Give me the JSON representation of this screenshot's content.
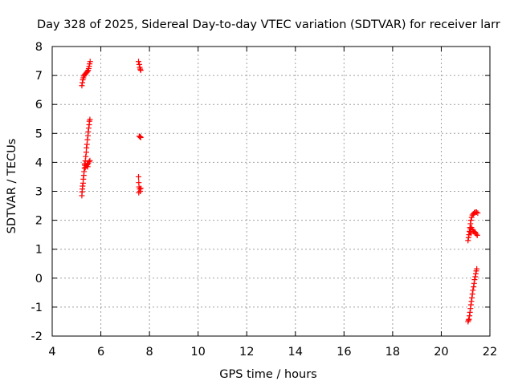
{
  "chart_data": {
    "type": "scatter",
    "title": "Day 328 of 2025, Sidereal Day-to-day VTEC variation (SDTVAR) for receiver larr",
    "xlabel": "GPS time / hours",
    "ylabel": "SDTVAR / TECUs",
    "xlim": [
      4,
      22
    ],
    "ylim": [
      -2,
      8
    ],
    "xticks": [
      4,
      6,
      8,
      10,
      12,
      14,
      16,
      18,
      20,
      22
    ],
    "yticks": [
      -2,
      -1,
      0,
      1,
      2,
      3,
      4,
      5,
      6,
      7,
      8
    ],
    "grid": true,
    "marker": "+",
    "colors": {
      "series": "#ff0000",
      "grid": "#a0a0a0",
      "axis": "#000000"
    },
    "series": [
      {
        "name": "SDTVAR",
        "points": [
          [
            5.22,
            6.65
          ],
          [
            5.24,
            6.75
          ],
          [
            5.26,
            6.85
          ],
          [
            5.28,
            6.92
          ],
          [
            5.3,
            6.98
          ],
          [
            5.33,
            7.02
          ],
          [
            5.36,
            7.05
          ],
          [
            5.39,
            7.08
          ],
          [
            5.42,
            7.11
          ],
          [
            5.45,
            7.14
          ],
          [
            5.48,
            7.18
          ],
          [
            5.5,
            7.24
          ],
          [
            5.52,
            7.32
          ],
          [
            5.54,
            7.4
          ],
          [
            5.56,
            7.48
          ],
          [
            5.22,
            2.85
          ],
          [
            5.23,
            2.98
          ],
          [
            5.24,
            3.08
          ],
          [
            5.25,
            3.18
          ],
          [
            5.27,
            3.28
          ],
          [
            5.28,
            3.42
          ],
          [
            5.3,
            3.55
          ],
          [
            5.31,
            3.68
          ],
          [
            5.33,
            3.8
          ],
          [
            5.34,
            3.9
          ],
          [
            5.36,
            4.05
          ],
          [
            5.38,
            4.2
          ],
          [
            5.4,
            4.35
          ],
          [
            5.41,
            4.5
          ],
          [
            5.43,
            4.62
          ],
          [
            5.45,
            4.78
          ],
          [
            5.47,
            4.92
          ],
          [
            5.48,
            5.05
          ],
          [
            5.5,
            5.18
          ],
          [
            5.52,
            5.3
          ],
          [
            5.53,
            5.42
          ],
          [
            5.55,
            5.48
          ],
          [
            5.36,
            3.82
          ],
          [
            5.4,
            3.88
          ],
          [
            5.44,
            3.92
          ],
          [
            5.48,
            3.96
          ],
          [
            5.52,
            4.02
          ],
          [
            5.55,
            4.06
          ],
          [
            5.33,
            3.95
          ],
          [
            5.46,
            3.85
          ],
          [
            7.55,
            7.48
          ],
          [
            7.58,
            7.38
          ],
          [
            7.6,
            7.28
          ],
          [
            7.62,
            7.22
          ],
          [
            7.64,
            7.18
          ],
          [
            7.58,
            4.9
          ],
          [
            7.62,
            4.88
          ],
          [
            7.64,
            4.86
          ],
          [
            7.55,
            3.5
          ],
          [
            7.56,
            3.3
          ],
          [
            7.57,
            3.15
          ],
          [
            7.6,
            3.08
          ],
          [
            7.62,
            3.0
          ],
          [
            7.64,
            3.1
          ],
          [
            7.56,
            2.95
          ],
          [
            21.1,
            1.3
          ],
          [
            21.12,
            1.4
          ],
          [
            21.14,
            1.5
          ],
          [
            21.16,
            1.62
          ],
          [
            21.18,
            1.75
          ],
          [
            21.2,
            1.88
          ],
          [
            21.22,
            2.0
          ],
          [
            21.25,
            2.1
          ],
          [
            21.28,
            2.18
          ],
          [
            21.32,
            2.22
          ],
          [
            21.36,
            2.26
          ],
          [
            21.4,
            2.28
          ],
          [
            21.45,
            2.28
          ],
          [
            21.5,
            2.25
          ],
          [
            21.2,
            1.7
          ],
          [
            21.24,
            1.75
          ],
          [
            21.28,
            1.68
          ],
          [
            21.32,
            1.62
          ],
          [
            21.36,
            1.6
          ],
          [
            21.4,
            1.58
          ],
          [
            21.44,
            1.52
          ],
          [
            21.48,
            1.48
          ],
          [
            21.22,
            1.55
          ],
          [
            21.18,
            1.6
          ],
          [
            21.1,
            -1.5
          ],
          [
            21.12,
            -1.45
          ],
          [
            21.14,
            -1.42
          ],
          [
            21.16,
            -1.3
          ],
          [
            21.18,
            -1.18
          ],
          [
            21.2,
            -1.05
          ],
          [
            21.22,
            -0.92
          ],
          [
            21.24,
            -0.8
          ],
          [
            21.26,
            -0.68
          ],
          [
            21.28,
            -0.55
          ],
          [
            21.3,
            -0.42
          ],
          [
            21.33,
            -0.3
          ],
          [
            21.35,
            -0.18
          ],
          [
            21.37,
            -0.05
          ],
          [
            21.4,
            0.05
          ],
          [
            21.42,
            0.15
          ],
          [
            21.44,
            0.25
          ],
          [
            21.46,
            0.32
          ]
        ]
      }
    ]
  }
}
